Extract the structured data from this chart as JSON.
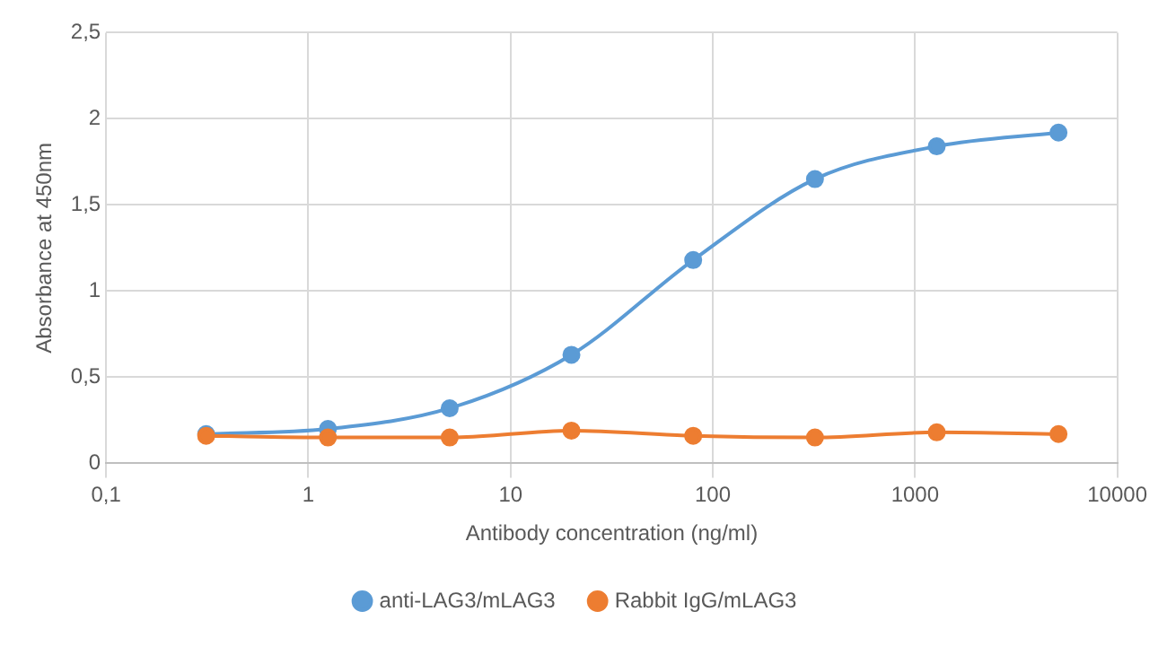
{
  "chart_data": {
    "type": "line",
    "xlabel": "Antibody concentration (ng/ml)",
    "ylabel": "Absorbance at 450nm",
    "x": [
      0.3125,
      1.25,
      5,
      20,
      80,
      320,
      1280,
      5120
    ],
    "series": [
      {
        "name": "anti-LAG3/mLAG3",
        "color": "#5b9bd5",
        "values": [
          0.17,
          0.2,
          0.32,
          0.63,
          1.18,
          1.65,
          1.84,
          1.92
        ]
      },
      {
        "name": "Rabbit IgG/mLAG3",
        "color": "#ed7d31",
        "values": [
          0.16,
          0.15,
          0.15,
          0.19,
          0.16,
          0.15,
          0.18,
          0.17
        ]
      }
    ],
    "log": "x",
    "xlim": [
      0.1,
      10000
    ],
    "xticks": [
      {
        "value": 0.1,
        "label": "0,1"
      },
      1,
      10,
      100,
      1000,
      10000
    ],
    "ylim": [
      0,
      2.5
    ],
    "yticks": [
      0,
      {
        "value": 0.5,
        "label": "0,5"
      },
      1,
      {
        "value": 1.5,
        "label": "1,5"
      },
      2,
      {
        "value": 2.5,
        "label": "2,5"
      }
    ],
    "grid": true,
    "legend": "bottom",
    "marker": "circle",
    "line_style": "solid"
  }
}
